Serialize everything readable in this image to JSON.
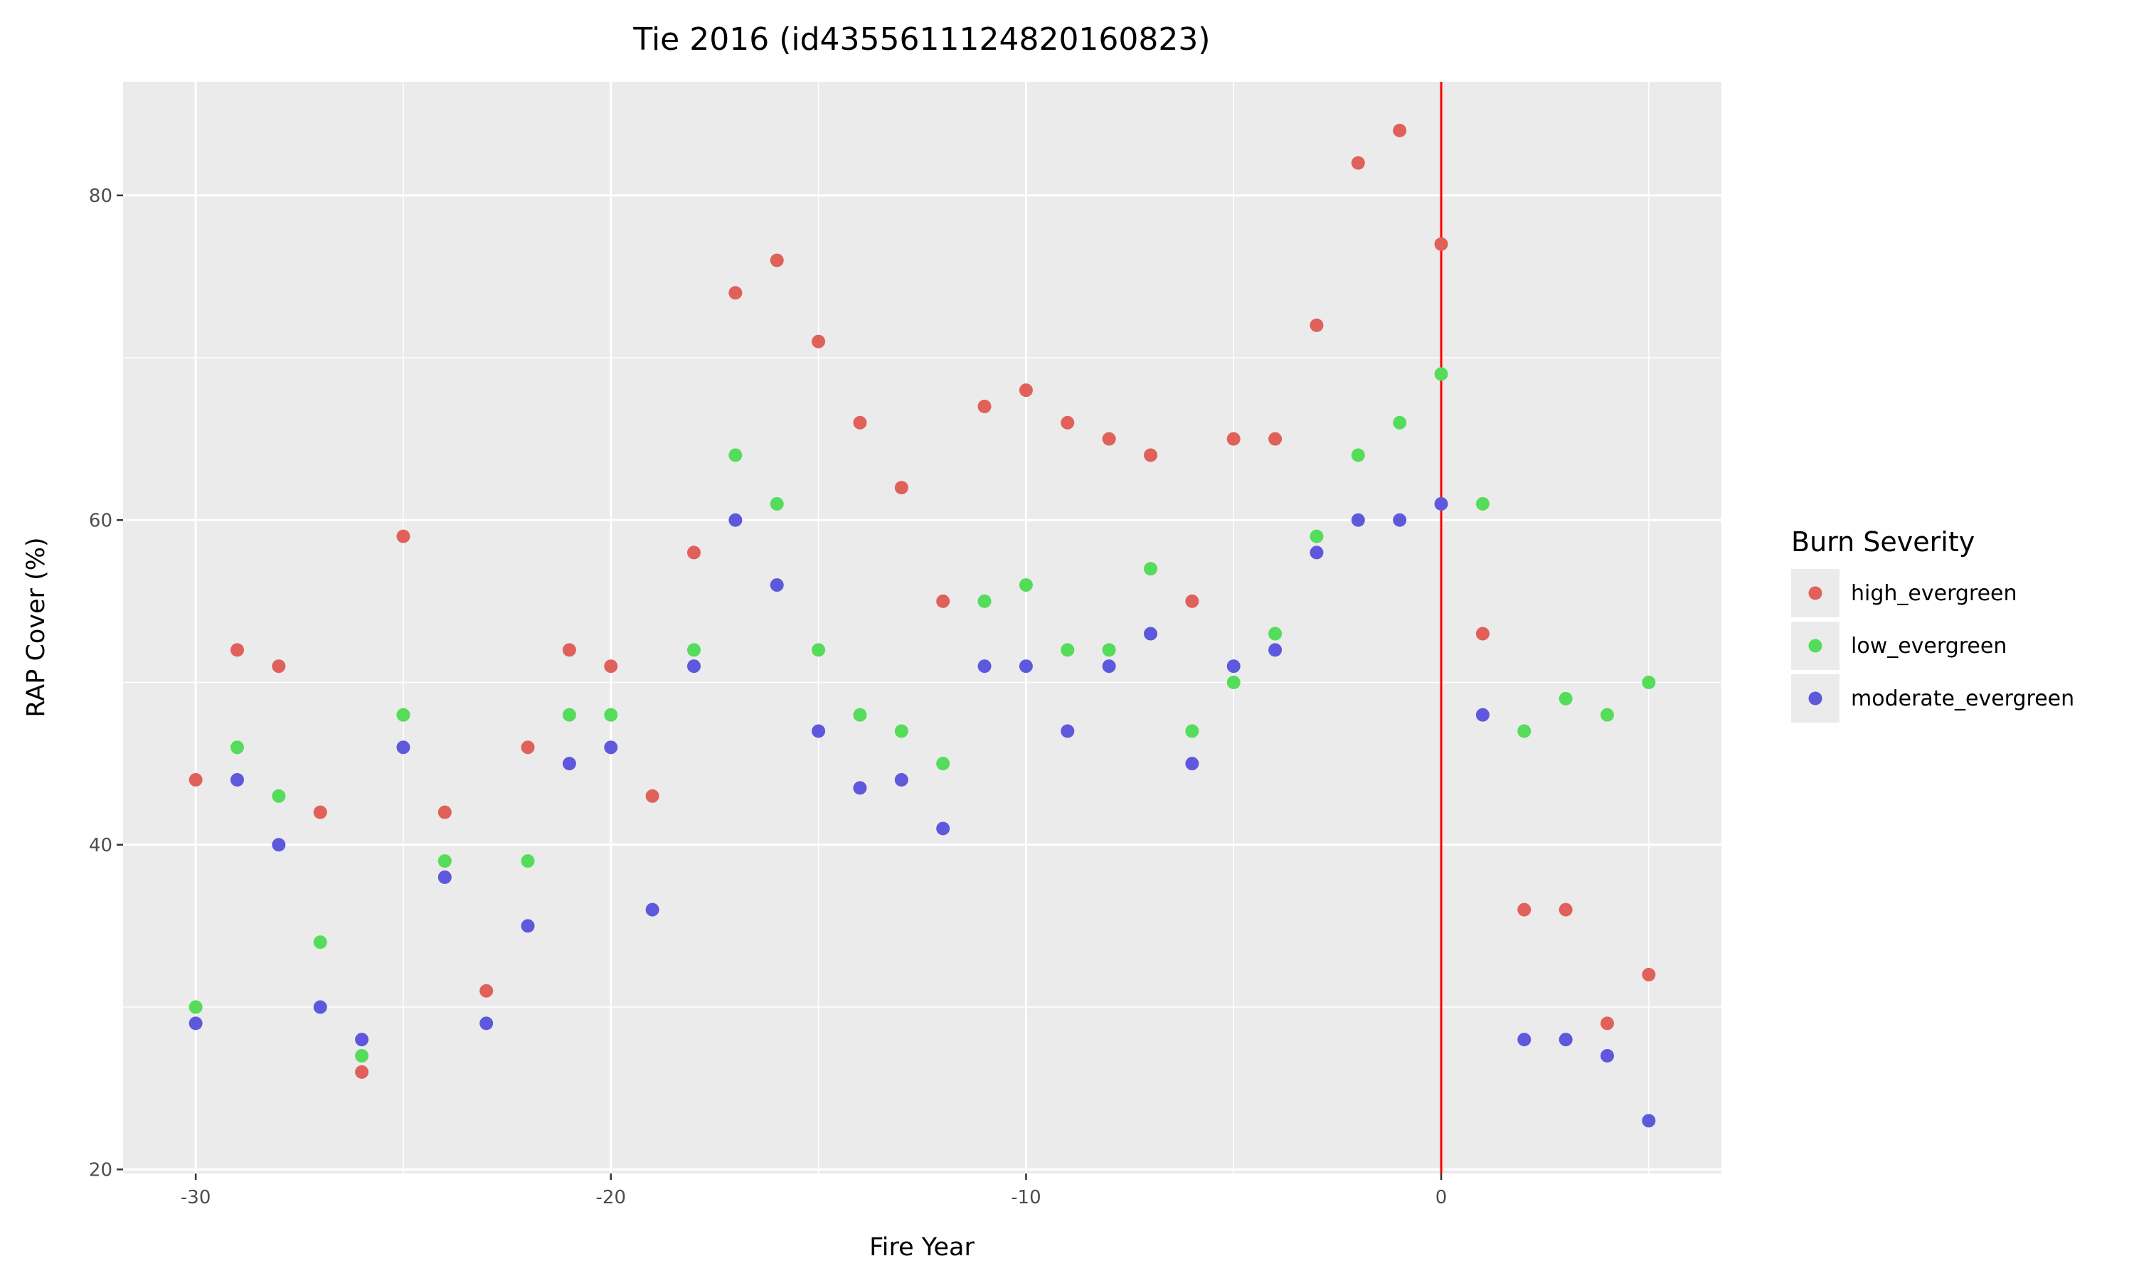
{
  "chart_data": {
    "type": "scatter",
    "title": "Tie 2016 (id4355611124820160823)",
    "xlabel": "Fire Year",
    "ylabel": "RAP Cover (%)",
    "xlim": [
      -31.75,
      6.75
    ],
    "ylim": [
      19.75,
      87.0
    ],
    "xticks": [
      -30,
      -20,
      -10,
      0
    ],
    "yticks": [
      20,
      40,
      60,
      80
    ],
    "grid": true,
    "vline": {
      "x": 0,
      "color": "#ff0000"
    },
    "legend": {
      "title": "Burn Severity",
      "placement": "right"
    },
    "series": [
      {
        "name": "high_evergreen",
        "color": "#e0605a",
        "x": [
          -30,
          -29,
          -28,
          -27,
          -26,
          -25,
          -24,
          -23,
          -22,
          -21,
          -20,
          -19,
          -18,
          -17,
          -16,
          -15,
          -14,
          -13,
          -12,
          -11,
          -10,
          -9,
          -8,
          -7,
          -6,
          -5,
          -4,
          -3,
          -2,
          -1,
          0,
          1,
          2,
          3,
          4,
          5
        ],
        "y": [
          44,
          52,
          51,
          42,
          26,
          59,
          42,
          31,
          46,
          52,
          51,
          43,
          58,
          74,
          76,
          71,
          66,
          62,
          55,
          67,
          68,
          66,
          65,
          64,
          55,
          65,
          65,
          72,
          82,
          84,
          77,
          53,
          36,
          36,
          29,
          32
        ]
      },
      {
        "name": "low_evergreen",
        "color": "#55dc5a",
        "x": [
          -30,
          -29,
          -28,
          -27,
          -26,
          -25,
          -24,
          -22,
          -21,
          -20,
          -18,
          -17,
          -16,
          -15,
          -14,
          -13,
          -12,
          -11,
          -10,
          -9,
          -8,
          -7,
          -6,
          -5,
          -4,
          -3,
          -2,
          -1,
          0,
          1,
          2,
          3,
          4,
          5
        ],
        "y": [
          30,
          46,
          43,
          34,
          27,
          48,
          39,
          39,
          48,
          48,
          52,
          64,
          61,
          52,
          48,
          47,
          45,
          55,
          56,
          52,
          52,
          57,
          47,
          50,
          53,
          59,
          64,
          66,
          69,
          61,
          47,
          49,
          48,
          50
        ]
      },
      {
        "name": "moderate_evergreen",
        "color": "#5e58dd",
        "x": [
          -30,
          -29,
          -28,
          -27,
          -26,
          -25,
          -24,
          -23,
          -22,
          -21,
          -20,
          -19,
          -18,
          -17,
          -16,
          -15,
          -14,
          -13,
          -12,
          -11,
          -10,
          -9,
          -8,
          -7,
          -6,
          -5,
          -4,
          -3,
          -2,
          -1,
          0,
          1,
          2,
          3,
          4,
          5
        ],
        "y": [
          29,
          44,
          40,
          30,
          28,
          46,
          38,
          29,
          35,
          45,
          46,
          36,
          51,
          60,
          56,
          47,
          43.5,
          44,
          41,
          51,
          51,
          47,
          51,
          53,
          45,
          51,
          52,
          58,
          60,
          60,
          61,
          48,
          28,
          28,
          27,
          23
        ]
      }
    ]
  }
}
